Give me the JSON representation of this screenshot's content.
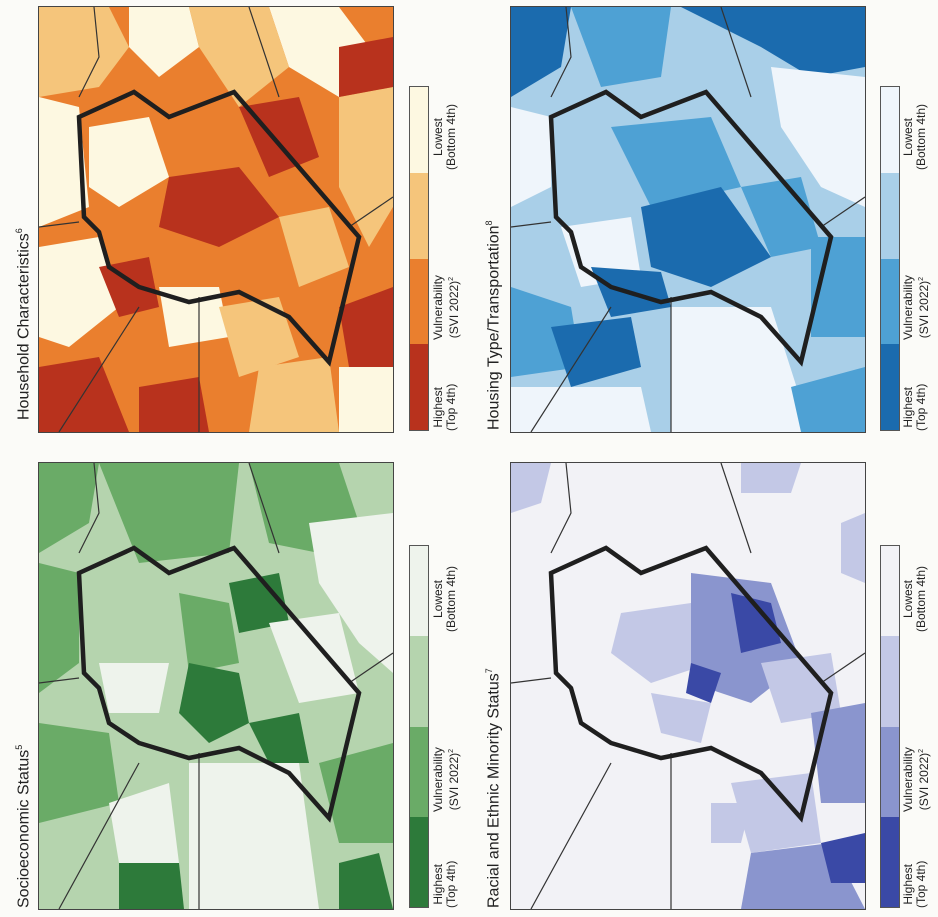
{
  "panels": {
    "household": {
      "title": "Household Characteristics",
      "note": "6",
      "colors": [
        "#b8321d",
        "#ea7f2e",
        "#f5c57b",
        "#fdf8e1"
      ]
    },
    "housing": {
      "title": "Housing Type/Transportation",
      "note": "8",
      "colors": [
        "#1b6bae",
        "#4ea1d4",
        "#a9cfe8",
        "#eff5fb"
      ]
    },
    "socio": {
      "title": "Socioeconomic Status",
      "note": "5",
      "colors": [
        "#2d7a3a",
        "#6aab67",
        "#b5d4ae",
        "#eef3ec"
      ]
    },
    "racial": {
      "title": "Racial and Ethnic Minority Status",
      "note": "7",
      "colors": [
        "#3a49a6",
        "#8a95ce",
        "#c3c8e6",
        "#f2f2f6"
      ]
    }
  },
  "legend": {
    "highest": "Highest",
    "highest_sub": "(Top 4th)",
    "vuln": "Vulnerability",
    "vuln_sub": "(SVI 2022)",
    "vuln_note": "2",
    "lowest": "Lowest",
    "lowest_sub": "(Bottom 4th)"
  }
}
